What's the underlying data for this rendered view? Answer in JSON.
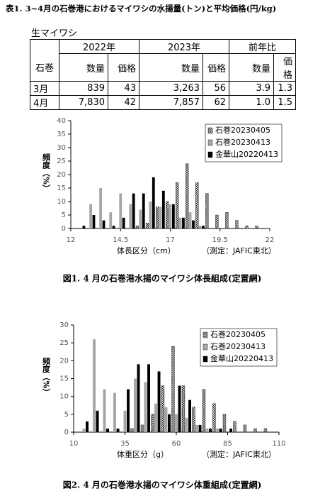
{
  "title": "表1. 3~4月の石巻港におけるマイワシの水揚量(トン)と平均価格(円/kg)",
  "table": {
    "label": "生マイワシ",
    "header": [
      "石巻",
      "2022年",
      "2023年",
      "前年比"
    ],
    "subheader": [
      "数量",
      "価格",
      "数量",
      "価格",
      "数量",
      "価格"
    ],
    "rows": [
      [
        "3月",
        "839",
        "43",
        "3,263",
        "56",
        "3.9",
        "1.3"
      ],
      [
        "4月",
        "7,830",
        "42",
        "7,857",
        "62",
        "1.0",
        "1.5"
      ]
    ]
  },
  "chart_data": [
    {
      "type": "bar",
      "xlabel": "体長区分（cm）",
      "note": "（測定：JAFIC東北）",
      "ylabel": "頻度（%）",
      "caption": "図1.  4 月の石巻港水揚のマイワシ体長組成(定置網)",
      "x": [
        12.5,
        13,
        13.5,
        14,
        14.5,
        15,
        15.5,
        16,
        16.5,
        17,
        17.5,
        18,
        18.5,
        19,
        19.5,
        20,
        20.5,
        21,
        21.5
      ],
      "xlim": [
        12,
        22
      ],
      "xticks": [
        12,
        14.5,
        17,
        19.5,
        22
      ],
      "ylim": [
        0,
        40
      ],
      "yticks": [
        0,
        5,
        10,
        15,
        20,
        25,
        30,
        35,
        40
      ],
      "legend": "upper right",
      "series": [
        {
          "name": "石巻20230405",
          "color": "#ffffff",
          "hatch": true,
          "values": [
            0,
            0,
            0,
            0,
            0,
            0,
            1,
            2,
            8,
            10,
            17,
            24,
            17,
            13,
            5,
            6,
            3,
            1,
            1
          ]
        },
        {
          "name": "石巻20230413",
          "color": "#a6a6a6",
          "values": [
            0,
            9,
            15,
            6,
            13,
            9,
            7,
            10,
            8,
            9,
            4,
            6,
            1,
            0,
            0,
            0,
            0,
            0,
            0
          ]
        },
        {
          "name": "金華山20220413",
          "color": "#000000",
          "values": [
            1,
            5,
            3,
            1,
            4,
            13,
            13,
            19,
            14,
            9,
            4,
            3,
            1,
            0,
            0,
            0,
            0,
            0,
            0
          ]
        }
      ]
    },
    {
      "type": "bar",
      "xlabel": "体重区分（g）",
      "note": "（測定：JAFIC東北）",
      "ylabel": "頻度（%）",
      "caption": "図2. 4 月の石巻港水揚のマイワシ体重組成(定置網)",
      "x": [
        15,
        20,
        25,
        30,
        35,
        40,
        45,
        50,
        55,
        60,
        65,
        70,
        75,
        80,
        85,
        90,
        95,
        100,
        105
      ],
      "xlim": [
        10,
        110
      ],
      "xticks": [
        10,
        35,
        60,
        85,
        110
      ],
      "ylim": [
        0,
        30
      ],
      "yticks": [
        0,
        5,
        10,
        15,
        20,
        25,
        30
      ],
      "legend": "upper right",
      "series": [
        {
          "name": "石巻20230405",
          "color": "#ffffff",
          "hatch": true,
          "values": [
            0,
            0,
            0,
            0,
            0,
            1,
            2,
            5,
            13,
            24,
            13,
            7,
            12,
            8,
            5,
            3,
            2,
            1,
            1
          ]
        },
        {
          "name": "石巻20230413",
          "color": "#a6a6a6",
          "values": [
            1,
            26,
            12,
            11,
            6,
            15,
            14,
            8,
            7,
            5,
            4,
            2,
            1,
            1,
            0,
            0,
            0,
            0,
            0
          ]
        },
        {
          "name": "金華山20220413",
          "color": "#000000",
          "values": [
            3,
            6,
            1,
            1,
            12,
            19,
            19,
            17,
            5,
            13,
            9,
            2,
            1,
            1,
            1,
            0,
            0,
            0,
            0
          ]
        }
      ]
    }
  ]
}
